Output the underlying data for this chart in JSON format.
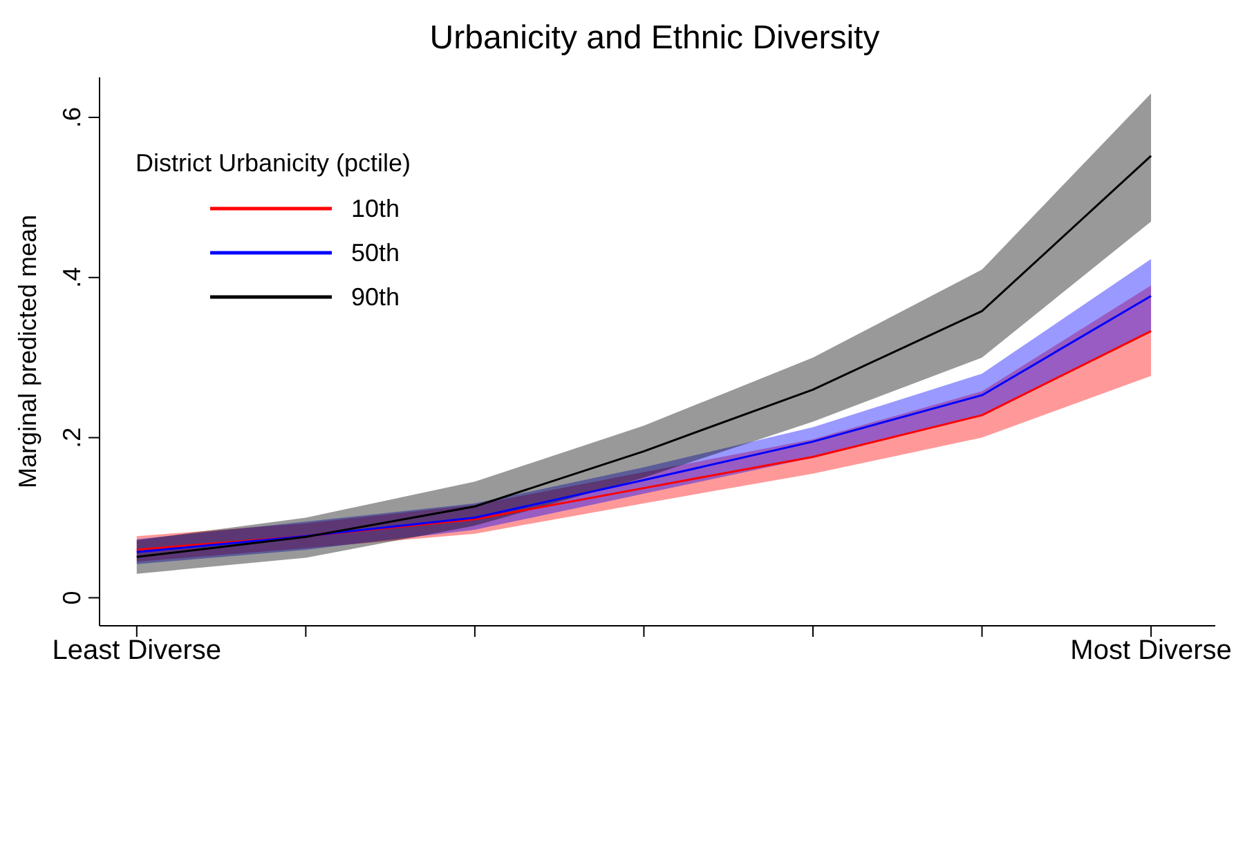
{
  "chart_data": {
    "type": "line",
    "title": "Urbanicity and Ethnic Diversity",
    "ylabel": "Marginal predicted mean",
    "legend_title": "District Urbanicity (pctile)",
    "categories": [
      "Least Diverse",
      null,
      null,
      null,
      null,
      null,
      "Most Diverse"
    ],
    "series": [
      {
        "name": "10th",
        "color": "#ff0000",
        "values": [
          0.06,
          0.077,
          0.098,
          0.137,
          0.176,
          0.228,
          0.333
        ],
        "lower": [
          0.045,
          0.062,
          0.08,
          0.118,
          0.155,
          0.2,
          0.277
        ],
        "upper": [
          0.077,
          0.093,
          0.116,
          0.157,
          0.198,
          0.258,
          0.39
        ]
      },
      {
        "name": "50th",
        "color": "#0000ff",
        "values": [
          0.057,
          0.077,
          0.1,
          0.147,
          0.195,
          0.253,
          0.377
        ],
        "lower": [
          0.042,
          0.06,
          0.085,
          0.13,
          0.175,
          0.228,
          0.333
        ],
        "upper": [
          0.073,
          0.095,
          0.118,
          0.163,
          0.213,
          0.28,
          0.423
        ]
      },
      {
        "name": "90th",
        "color": "#000000",
        "values": [
          0.051,
          0.076,
          0.114,
          0.183,
          0.26,
          0.358,
          0.552
        ],
        "lower": [
          0.03,
          0.05,
          0.09,
          0.15,
          0.22,
          0.3,
          0.47
        ],
        "upper": [
          0.072,
          0.1,
          0.145,
          0.215,
          0.3,
          0.41,
          0.63
        ]
      }
    ],
    "ylim": [
      -0.035,
      0.65
    ],
    "yticks": [
      {
        "value": 0,
        "label": "0"
      },
      {
        "value": 0.2,
        "label": ".2"
      },
      {
        "value": 0.4,
        "label": ".4"
      },
      {
        "value": 0.6,
        "label": ".6"
      }
    ],
    "grid": false,
    "legend": "top left",
    "marker": "none",
    "line_style": "solid"
  }
}
